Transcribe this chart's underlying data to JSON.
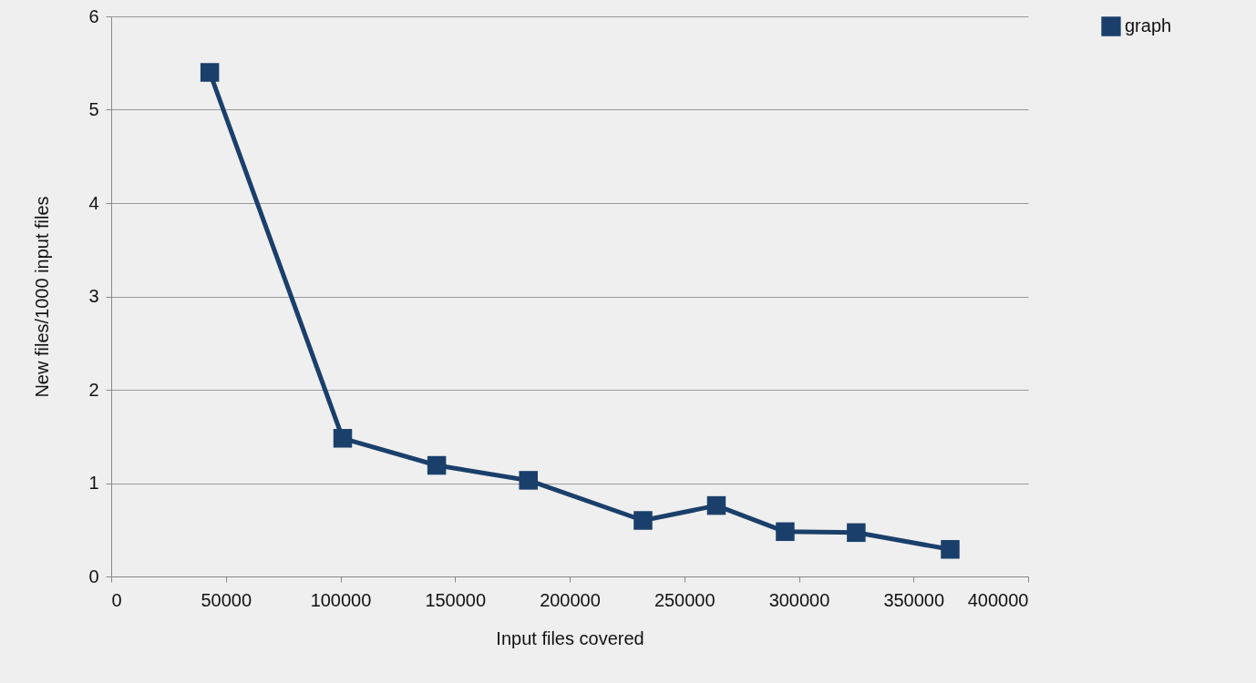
{
  "chart_data": {
    "type": "line",
    "xlabel": "Input files covered",
    "ylabel": "New files/1000 input files",
    "x": [
      43000,
      101000,
      142000,
      182000,
      232000,
      264000,
      294000,
      325000,
      366000
    ],
    "series": [
      {
        "name": "graph",
        "color": "#1a3f6b",
        "values": [
          5.4,
          1.48,
          1.19,
          1.03,
          0.6,
          0.76,
          0.48,
          0.47,
          0.29
        ]
      }
    ],
    "xlim": [
      0,
      400000
    ],
    "xticks": [
      0,
      50000,
      100000,
      150000,
      200000,
      250000,
      300000,
      350000,
      400000
    ],
    "ylim": [
      0,
      6
    ],
    "yticks": [
      0,
      1,
      2,
      3,
      4,
      5,
      6
    ],
    "grid": "y",
    "legend": "right",
    "marker": "square",
    "line_style": "solid"
  }
}
